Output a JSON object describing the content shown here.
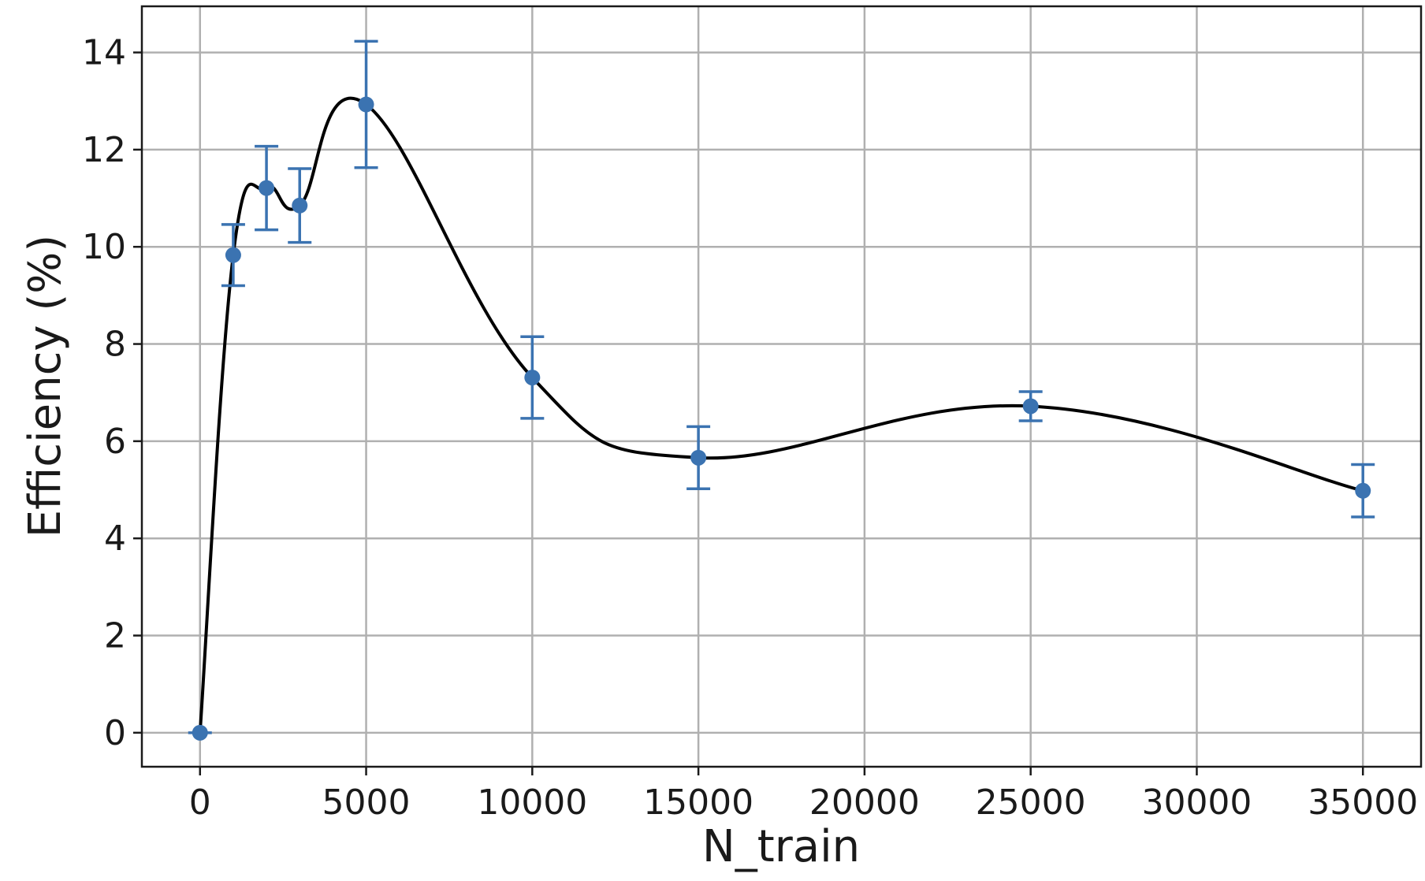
{
  "chart_data": {
    "type": "line",
    "title": "",
    "xlabel": "N_train",
    "ylabel": "Efficiency (%)",
    "xlim": [
      -1750,
      36750
    ],
    "ylim": [
      -0.7,
      14.95
    ],
    "x_ticks": [
      0,
      5000,
      10000,
      15000,
      20000,
      25000,
      30000,
      35000
    ],
    "x_tick_labels": [
      "0",
      "5000",
      "10000",
      "15000",
      "20000",
      "25000",
      "30000",
      "35000"
    ],
    "y_ticks": [
      0,
      2,
      4,
      6,
      8,
      10,
      12,
      14
    ],
    "y_tick_labels": [
      "0",
      "2",
      "4",
      "6",
      "8",
      "10",
      "12",
      "14"
    ],
    "grid": true,
    "legend": "none",
    "series": [
      {
        "x": [
          0,
          1000,
          2000,
          3000,
          5000,
          10000,
          15000,
          25000,
          35000
        ],
        "y": [
          0.0,
          9.83,
          11.21,
          10.85,
          12.93,
          7.31,
          5.66,
          6.72,
          4.98
        ],
        "error": [
          0.0,
          0.63,
          0.86,
          0.76,
          1.3,
          0.84,
          0.64,
          0.3,
          0.54
        ],
        "marker_color": "#3b73b1",
        "error_color": "#3b73b1"
      }
    ],
    "fit_curve": {
      "description": "smooth curve through points",
      "color": "#000000"
    }
  }
}
